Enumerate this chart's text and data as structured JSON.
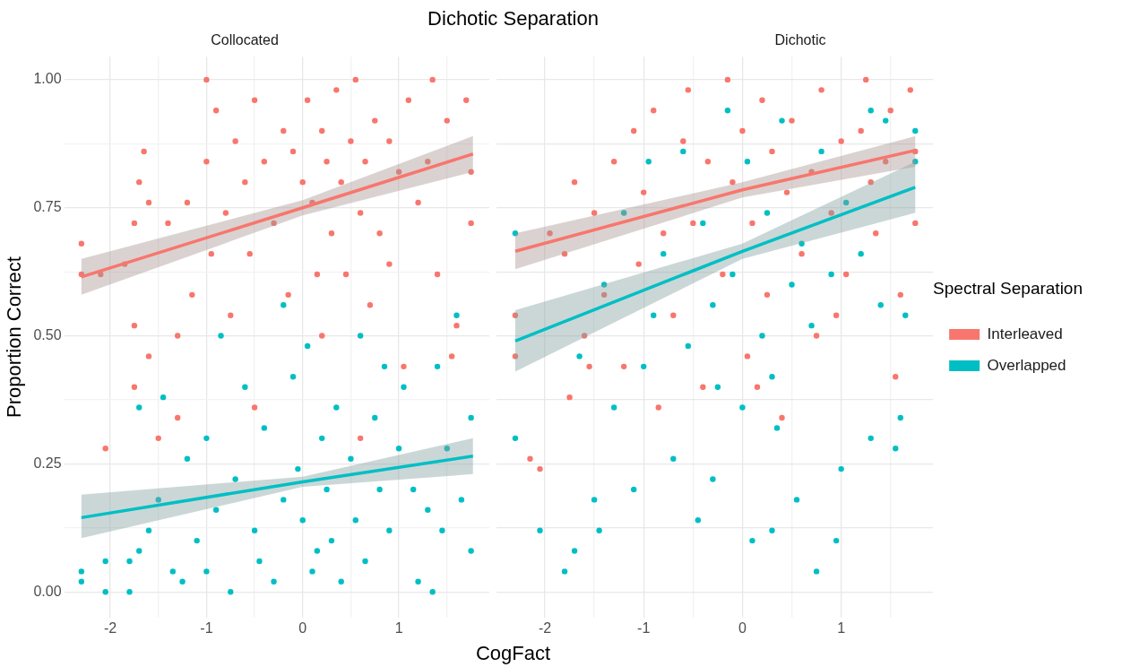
{
  "chart_data": [
    {
      "type": "scatter",
      "title": "Dichotic Separation",
      "subtitle": "Collocated",
      "xlabel": "CogFact",
      "ylabel": "Proportion Correct",
      "xlim": [
        -2.48,
        1.94
      ],
      "xticks": [
        {
          "value": -2,
          "label": "-2"
        },
        {
          "value": -1.5,
          "label": null
        },
        {
          "value": -1,
          "label": "-1"
        },
        {
          "value": -0.5,
          "label": null
        },
        {
          "value": 0,
          "label": "0"
        },
        {
          "value": 0.5,
          "label": null
        },
        {
          "value": 1,
          "label": "1"
        },
        {
          "value": 1.5,
          "label": null
        }
      ],
      "ylim": [
        -0.05,
        1.045
      ],
      "yticks": [
        {
          "value": 0,
          "label": "0.00"
        },
        {
          "value": 0.125,
          "label": null
        },
        {
          "value": 0.25,
          "label": "0.25"
        },
        {
          "value": 0.375,
          "label": null
        },
        {
          "value": 0.5,
          "label": "0.50"
        },
        {
          "value": 0.625,
          "label": null
        },
        {
          "value": 0.75,
          "label": "0.75"
        },
        {
          "value": 0.875,
          "label": null
        },
        {
          "value": 1,
          "label": "1.00"
        }
      ],
      "grid": true,
      "marker": "circle",
      "legend": false,
      "series": [
        {
          "color": "#f8766d",
          "x": [
            -2.3,
            -2.3,
            -2.1,
            -1.85,
            -1.75,
            -1.7,
            -1.65,
            -1.6,
            -1.75,
            -1.6,
            -1.75,
            -1.5,
            -1.4,
            -1.3,
            -1.2,
            -1.0,
            -1.0,
            -0.9,
            -0.8,
            -0.75,
            -0.7,
            -0.6,
            -0.55,
            -0.5,
            -0.4,
            -0.3,
            -0.2,
            -0.15,
            -0.1,
            0,
            0.05,
            0.1,
            0.15,
            0.2,
            0.25,
            0.3,
            0.35,
            0.4,
            0.45,
            0.5,
            0.55,
            0.6,
            0.65,
            0.7,
            0.75,
            0.8,
            0.9,
            1.0,
            1.05,
            1.1,
            1.2,
            1.3,
            1.35,
            1.4,
            1.5,
            1.6,
            1.7,
            1.75,
            1.75,
            -2.05,
            -1.3,
            -0.5,
            0.2,
            0.6,
            1.55,
            -0.95,
            -1.15,
            0.9
          ],
          "values": [
            0.68,
            0.62,
            0.62,
            0.64,
            0.72,
            0.8,
            0.86,
            0.76,
            0.52,
            0.46,
            0.4,
            0.3,
            0.72,
            0.5,
            0.76,
            1.0,
            0.84,
            0.94,
            0.74,
            0.54,
            0.88,
            0.8,
            0.66,
            0.96,
            0.84,
            0.72,
            0.9,
            0.58,
            0.86,
            0.8,
            0.96,
            0.76,
            0.62,
            0.9,
            0.84,
            0.7,
            0.98,
            0.8,
            0.62,
            0.88,
            1.0,
            0.74,
            0.84,
            0.56,
            0.92,
            0.7,
            0.88,
            0.82,
            0.44,
            0.96,
            0.76,
            0.84,
            1.0,
            0.62,
            0.92,
            0.52,
            0.96,
            0.82,
            0.72,
            0.28,
            0.34,
            0.36,
            0.5,
            0.3,
            0.46,
            0.66,
            0.58,
            0.64
          ]
        },
        {
          "color": "#00bfc4",
          "x": [
            -2.3,
            -2.3,
            -2.05,
            -2.05,
            -1.8,
            -1.8,
            -1.7,
            -1.7,
            -1.6,
            -1.5,
            -1.45,
            -1.35,
            -1.25,
            -1.2,
            -1.1,
            -1.0,
            -0.9,
            -0.85,
            -0.75,
            -0.7,
            -0.6,
            -0.5,
            -0.45,
            -0.4,
            -0.3,
            -0.2,
            -0.1,
            -0.05,
            0.0,
            0.05,
            0.1,
            0.2,
            0.25,
            0.3,
            0.35,
            0.4,
            0.5,
            0.55,
            0.6,
            0.65,
            0.75,
            0.8,
            0.85,
            0.9,
            1.0,
            1.05,
            1.15,
            1.3,
            1.35,
            1.4,
            1.45,
            1.5,
            1.6,
            1.65,
            1.75,
            1.75,
            -0.2,
            -1.0,
            0.15,
            1.2
          ],
          "values": [
            0.04,
            0.02,
            0.0,
            0.06,
            0.0,
            0.06,
            0.08,
            0.36,
            0.12,
            0.18,
            0.38,
            0.04,
            0.02,
            0.26,
            0.1,
            0.3,
            0.16,
            0.5,
            0.0,
            0.22,
            0.4,
            0.12,
            0.06,
            0.32,
            0.02,
            0.18,
            0.42,
            0.24,
            0.14,
            0.48,
            0.04,
            0.3,
            0.2,
            0.1,
            0.36,
            0.02,
            0.26,
            0.14,
            0.5,
            0.06,
            0.34,
            0.2,
            0.44,
            0.12,
            0.28,
            0.4,
            0.2,
            0.16,
            0.0,
            0.44,
            0.12,
            0.28,
            0.54,
            0.18,
            0.34,
            0.08,
            0.56,
            0.04,
            0.08,
            0.02
          ]
        },
        {
          "type": "line",
          "marker": "none",
          "color": "#f8766d",
          "x": [
            -2.3,
            0,
            1.77
          ],
          "values": [
            0.615,
            0.75,
            0.855
          ],
          "lower": [
            0.58,
            0.735,
            0.82
          ],
          "upper": [
            0.65,
            0.765,
            0.89
          ]
        },
        {
          "type": "line",
          "marker": "none",
          "color": "#00bfc4",
          "x": [
            -2.3,
            0,
            1.77
          ],
          "values": [
            0.145,
            0.215,
            0.265
          ],
          "lower": [
            0.105,
            0.205,
            0.23
          ],
          "upper": [
            0.19,
            0.225,
            0.3
          ]
        }
      ]
    },
    {
      "type": "scatter",
      "subtitle": "Dichotic",
      "tick_labels": "x",
      "legend_title": "Spectral Separation",
      "legend": "right",
      "xlim": [
        -2.49,
        1.93
      ],
      "xticks": [
        {
          "value": -2,
          "label": "-2"
        },
        {
          "value": -1.5,
          "label": null
        },
        {
          "value": -1,
          "label": "-1"
        },
        {
          "value": -0.5,
          "label": null
        },
        {
          "value": 0,
          "label": "0"
        },
        {
          "value": 0.5,
          "label": null
        },
        {
          "value": 1,
          "label": "1"
        },
        {
          "value": 1.5,
          "label": null
        }
      ],
      "ylim": [
        -0.05,
        1.045
      ],
      "yticks": [
        0,
        0.125,
        0.25,
        0.375,
        0.5,
        0.625,
        0.75,
        0.875,
        1
      ],
      "grid": true,
      "marker": "circle",
      "series": [
        {
          "name": "Interleaved",
          "color": "#f8766d",
          "x": [
            -2.3,
            -2.3,
            -2.15,
            -1.95,
            -1.8,
            -1.75,
            -1.7,
            -1.6,
            -1.5,
            -1.4,
            -1.3,
            -1.2,
            -1.1,
            -1.05,
            -1.0,
            -0.9,
            -0.8,
            -0.7,
            -0.6,
            -0.55,
            -0.5,
            -0.4,
            -0.35,
            -0.2,
            -0.15,
            -0.1,
            0.0,
            0.05,
            0.1,
            0.2,
            0.25,
            0.3,
            0.4,
            0.45,
            0.5,
            0.6,
            0.7,
            0.75,
            0.8,
            0.9,
            1.0,
            1.05,
            1.2,
            1.25,
            1.3,
            1.35,
            1.45,
            1.5,
            1.55,
            1.6,
            1.7,
            1.75,
            1.75,
            -0.85,
            0.15,
            0.95,
            -1.55,
            -2.05
          ],
          "values": [
            0.54,
            0.46,
            0.26,
            0.7,
            0.66,
            0.38,
            0.8,
            0.5,
            0.74,
            0.58,
            0.84,
            0.44,
            0.9,
            0.64,
            0.78,
            0.94,
            0.7,
            0.54,
            0.88,
            0.98,
            0.72,
            0.4,
            0.84,
            0.62,
            1.0,
            0.8,
            0.9,
            0.46,
            0.72,
            0.96,
            0.58,
            0.86,
            0.34,
            0.78,
            0.92,
            0.66,
            0.82,
            0.5,
            0.98,
            0.74,
            0.88,
            0.62,
            0.9,
            1.0,
            0.8,
            0.7,
            0.84,
            0.94,
            0.42,
            0.58,
            0.98,
            0.86,
            0.72,
            0.36,
            0.4,
            0.54,
            0.44,
            0.24
          ]
        },
        {
          "name": "Overlapped",
          "color": "#00bfc4",
          "x": [
            -2.3,
            -2.3,
            -2.05,
            -1.8,
            -1.7,
            -1.65,
            -1.5,
            -1.45,
            -1.4,
            -1.3,
            -1.2,
            -1.1,
            -1.0,
            -0.95,
            -0.9,
            -0.8,
            -0.7,
            -0.6,
            -0.55,
            -0.45,
            -0.4,
            -0.3,
            -0.25,
            -0.15,
            -0.1,
            0.0,
            0.05,
            0.1,
            0.2,
            0.25,
            0.3,
            0.35,
            0.4,
            0.5,
            0.55,
            0.6,
            0.7,
            0.75,
            0.8,
            0.9,
            1.0,
            1.05,
            1.2,
            1.3,
            1.3,
            1.4,
            1.45,
            1.55,
            1.6,
            1.65,
            1.75,
            1.75,
            -0.3,
            0.3,
            0.95
          ],
          "values": [
            0.7,
            0.3,
            0.12,
            0.04,
            0.08,
            0.46,
            0.18,
            0.12,
            0.6,
            0.36,
            0.74,
            0.2,
            0.44,
            0.84,
            0.54,
            0.66,
            0.26,
            0.86,
            0.48,
            0.14,
            0.72,
            0.56,
            0.4,
            0.94,
            0.62,
            0.36,
            0.84,
            0.1,
            0.5,
            0.74,
            0.42,
            0.32,
            0.92,
            0.6,
            0.18,
            0.68,
            0.52,
            0.04,
            0.86,
            0.62,
            0.24,
            0.76,
            0.66,
            0.94,
            0.3,
            0.56,
            0.92,
            0.28,
            0.34,
            0.54,
            0.9,
            0.84,
            0.22,
            0.12,
            0.1
          ]
        },
        {
          "type": "line",
          "marker": "none",
          "color": "#f8766d",
          "x": [
            -2.3,
            0,
            1.75
          ],
          "values": [
            0.665,
            0.785,
            0.862
          ],
          "lower": [
            0.63,
            0.77,
            0.83
          ],
          "upper": [
            0.7,
            0.8,
            0.89
          ]
        },
        {
          "type": "line",
          "marker": "none",
          "color": "#00bfc4",
          "x": [
            -2.3,
            0,
            1.75
          ],
          "values": [
            0.49,
            0.665,
            0.79
          ],
          "lower": [
            0.43,
            0.65,
            0.74
          ],
          "upper": [
            0.55,
            0.68,
            0.84
          ]
        }
      ]
    }
  ]
}
